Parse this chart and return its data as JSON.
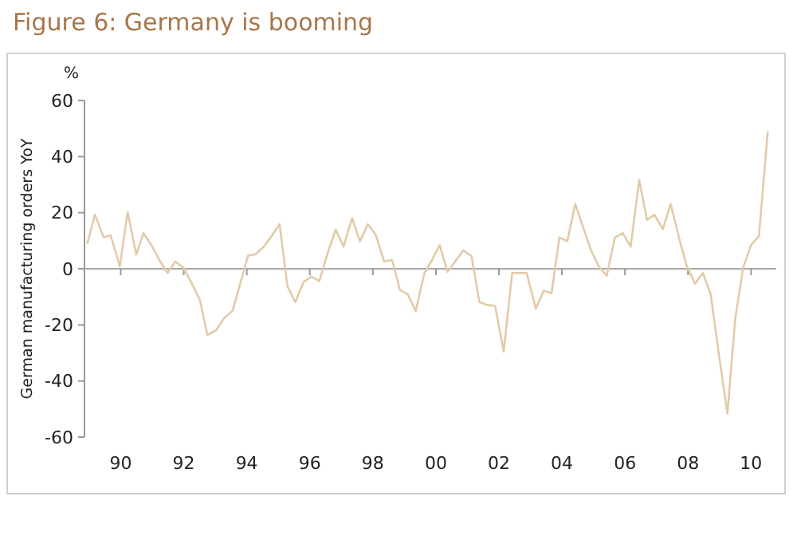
{
  "chart_data": {
    "type": "line",
    "title": "Figure 6: Germany is booming",
    "ylabel": "German manufacturing orders YoY",
    "annotations": [
      "%"
    ],
    "x": [
      1988.94,
      1989.18,
      1989.46,
      1989.68,
      1989.97,
      1990.22,
      1990.49,
      1990.72,
      1990.97,
      1991.22,
      1991.49,
      1991.73,
      1991.99,
      1992.26,
      1992.51,
      1992.75,
      1993.03,
      1993.28,
      1993.55,
      1993.79,
      1994.04,
      1994.27,
      1994.54,
      1994.79,
      1995.04,
      1995.29,
      1995.54,
      1995.8,
      1996.05,
      1996.3,
      1996.55,
      1996.82,
      1997.07,
      1997.34,
      1997.59,
      1997.84,
      1998.09,
      1998.36,
      1998.61,
      1998.86,
      1999.11,
      1999.36,
      1999.63,
      1999.88,
      2000.12,
      2000.37,
      2000.87,
      2001.13,
      2001.38,
      2001.63,
      2001.88,
      2002.15,
      2002.42,
      2002.88,
      2003.17,
      2003.42,
      2003.67,
      2003.92,
      2004.17,
      2004.42,
      2004.67,
      2004.92,
      2005.17,
      2005.42,
      2005.68,
      2005.93,
      2006.18,
      2006.45,
      2006.7,
      2006.93,
      2007.2,
      2007.45,
      2007.72,
      2007.95,
      2008.22,
      2008.47,
      2008.72,
      2008.97,
      2009.25,
      2009.5,
      2009.75,
      2010,
      2010.25,
      2010.53
    ],
    "series": [
      {
        "color": "#e2cba8",
        "values": [
          8.9,
          19.3,
          11.2,
          11.9,
          0.9,
          20.2,
          5.1,
          12.7,
          8.5,
          3.2,
          -1.5,
          2.6,
          0.4,
          -5.3,
          -11,
          -23.6,
          -21.9,
          -17.6,
          -14.9,
          -5.3,
          4.7,
          5.1,
          7.9,
          11.7,
          15.9,
          -6.2,
          -11.9,
          -4.7,
          -2.8,
          -4.4,
          5.1,
          14,
          7.9,
          18,
          9.8,
          15.9,
          12.1,
          2.6,
          3.2,
          -7.6,
          -9.1,
          -15.1,
          -1.7,
          3.2,
          8.5,
          -1.1,
          6.6,
          4.5,
          -11.9,
          -12.9,
          -13.2,
          -29.5,
          -1.5,
          -1.5,
          -14.2,
          -7.8,
          -8.7,
          11.2,
          9.8,
          23.1,
          14.9,
          6.6,
          0.9,
          -2.5,
          11.2,
          12.7,
          7.9,
          31.6,
          17.4,
          19.3,
          14.2,
          23.1,
          10.8,
          1.3,
          -5.3,
          -1.5,
          -9.1,
          -29.9,
          -51.6,
          -17.6,
          0.4,
          8.5,
          11.7,
          49
        ]
      }
    ],
    "xlim": [
      1988.85,
      2010.8
    ],
    "xticks": [
      {
        "value": 1990,
        "label": "90"
      },
      {
        "value": 1992,
        "label": "92"
      },
      {
        "value": 1994,
        "label": "94"
      },
      {
        "value": 1996,
        "label": "96"
      },
      {
        "value": 1998,
        "label": "98"
      },
      {
        "value": 2000,
        "label": "00"
      },
      {
        "value": 2002,
        "label": "02"
      },
      {
        "value": 2004,
        "label": "04"
      },
      {
        "value": 2006,
        "label": "06"
      },
      {
        "value": 2008,
        "label": "08"
      },
      {
        "value": 2010,
        "label": "10"
      }
    ],
    "ylim": [
      -60,
      60
    ],
    "yticks": [
      -60,
      -40,
      -20,
      0,
      20,
      40,
      60
    ],
    "marker": "none",
    "line_style": "solid"
  }
}
